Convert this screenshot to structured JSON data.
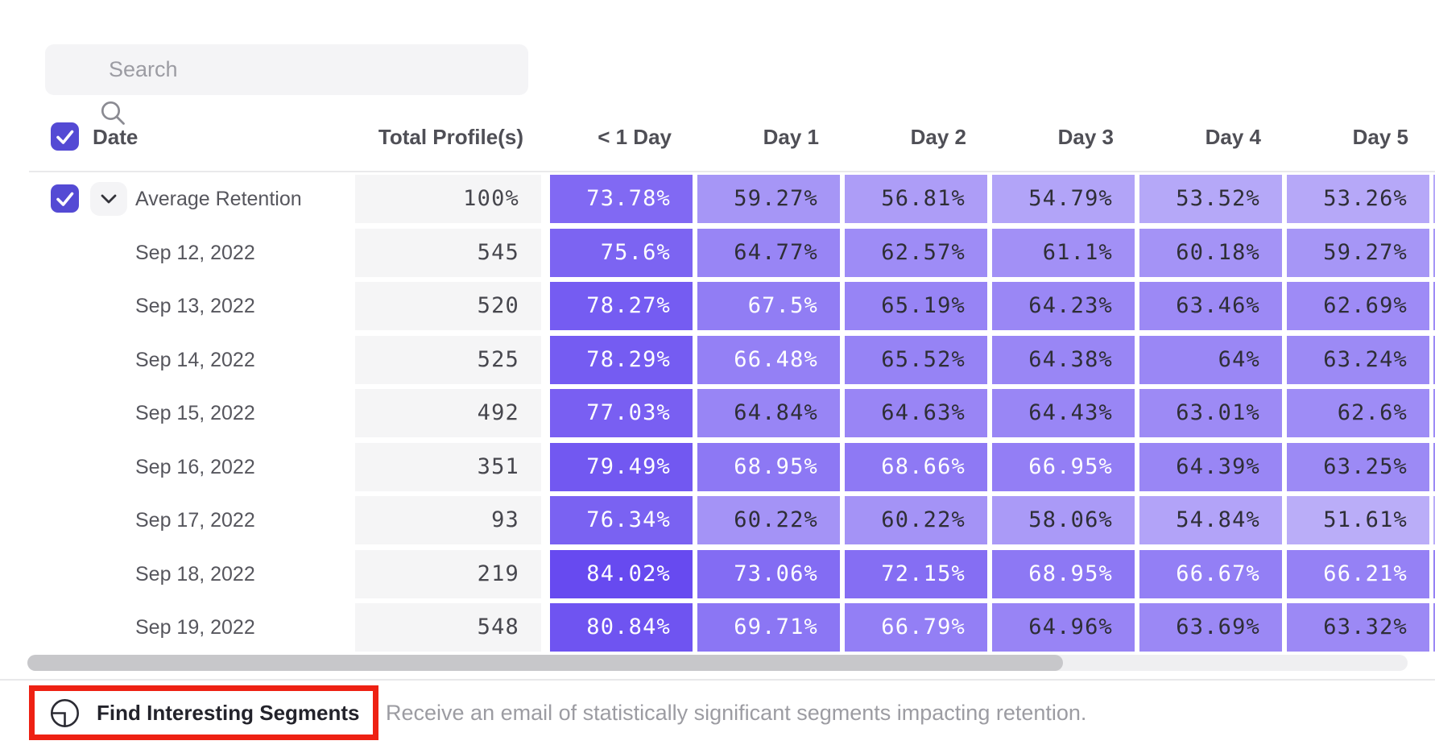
{
  "search": {
    "placeholder": "Search"
  },
  "table": {
    "date_header": "Date",
    "total_header": "Total Profile(s)",
    "day_headers": [
      "< 1 Day",
      "Day 1",
      "Day 2",
      "Day 3",
      "Day 4",
      "Day 5"
    ],
    "select_all_checked": true,
    "rows": [
      {
        "label": "Average Retention",
        "total": "100%",
        "checked": true,
        "expandable": true,
        "values": [
          "73.78%",
          "59.27%",
          "56.81%",
          "54.79%",
          "53.52%",
          "53.26%"
        ]
      },
      {
        "label": "Sep 12, 2022",
        "total": "545",
        "values": [
          "75.6%",
          "64.77%",
          "62.57%",
          "61.1%",
          "60.18%",
          "59.27%"
        ]
      },
      {
        "label": "Sep 13, 2022",
        "total": "520",
        "values": [
          "78.27%",
          "67.5%",
          "65.19%",
          "64.23%",
          "63.46%",
          "62.69%"
        ]
      },
      {
        "label": "Sep 14, 2022",
        "total": "525",
        "values": [
          "78.29%",
          "66.48%",
          "65.52%",
          "64.38%",
          "64%",
          "63.24%"
        ]
      },
      {
        "label": "Sep 15, 2022",
        "total": "492",
        "values": [
          "77.03%",
          "64.84%",
          "64.63%",
          "64.43%",
          "63.01%",
          "62.6%"
        ]
      },
      {
        "label": "Sep 16, 2022",
        "total": "351",
        "values": [
          "79.49%",
          "68.95%",
          "68.66%",
          "66.95%",
          "64.39%",
          "63.25%"
        ]
      },
      {
        "label": "Sep 17, 2022",
        "total": "93",
        "values": [
          "76.34%",
          "60.22%",
          "60.22%",
          "58.06%",
          "54.84%",
          "51.61%"
        ]
      },
      {
        "label": "Sep 18, 2022",
        "total": "219",
        "values": [
          "84.02%",
          "73.06%",
          "72.15%",
          "68.95%",
          "66.67%",
          "66.21%"
        ]
      },
      {
        "label": "Sep 19, 2022",
        "total": "548",
        "values": [
          "80.84%",
          "69.71%",
          "66.79%",
          "64.96%",
          "63.69%",
          "63.32%"
        ]
      }
    ]
  },
  "footer": {
    "button_label": "Find Interesting Segments",
    "description": "Receive an email of statistically significant segments impacting retention."
  },
  "colors": {
    "heatmap_base": "#6447F0",
    "checkbox": "#544AD4",
    "annotation": "#EE2113",
    "cell_text_dark": "#2E2E36",
    "cell_text_light": "#FFFFFF"
  }
}
